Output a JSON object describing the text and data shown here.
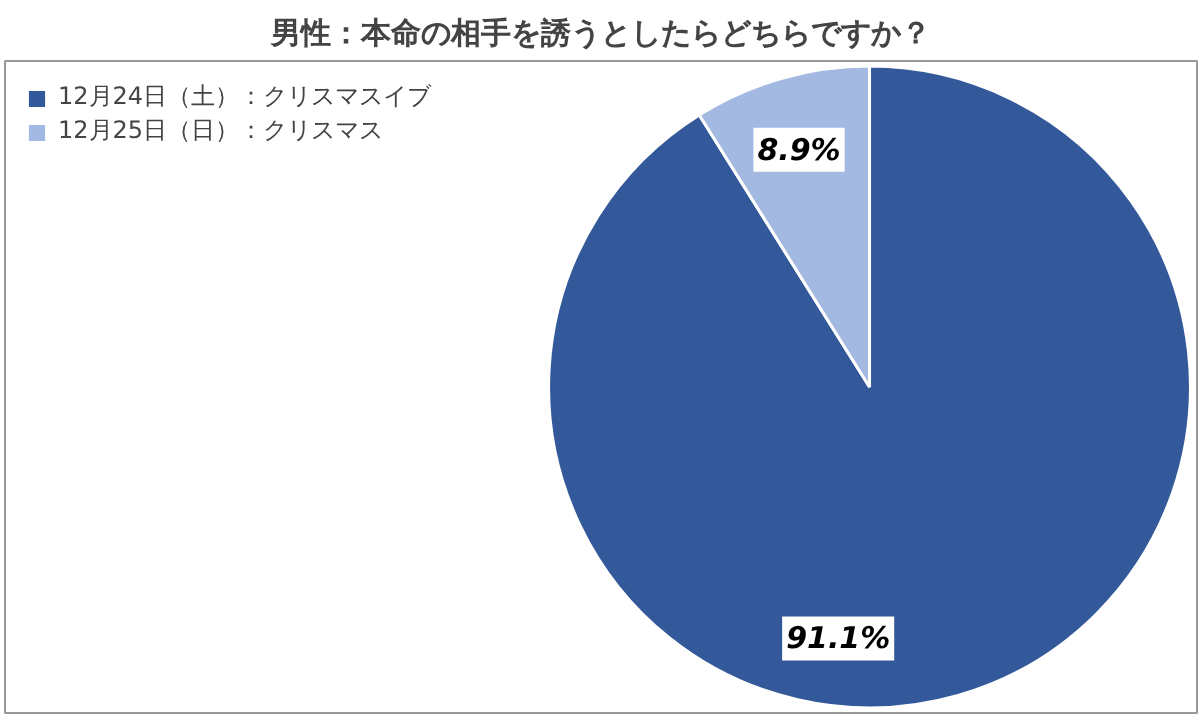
{
  "chart_data": {
    "type": "pie",
    "title": "男性：本命の相手を誘うとしたらどちらですか？",
    "categories": [
      "12月24日（土）：クリスマスイブ",
      "12月25日（日）：クリスマス"
    ],
    "values": [
      91.1,
      8.9
    ],
    "colors": [
      "#34599b",
      "#a3b9e2"
    ],
    "value_labels": [
      "91.1%",
      "8.9%"
    ],
    "legend": "top left"
  }
}
